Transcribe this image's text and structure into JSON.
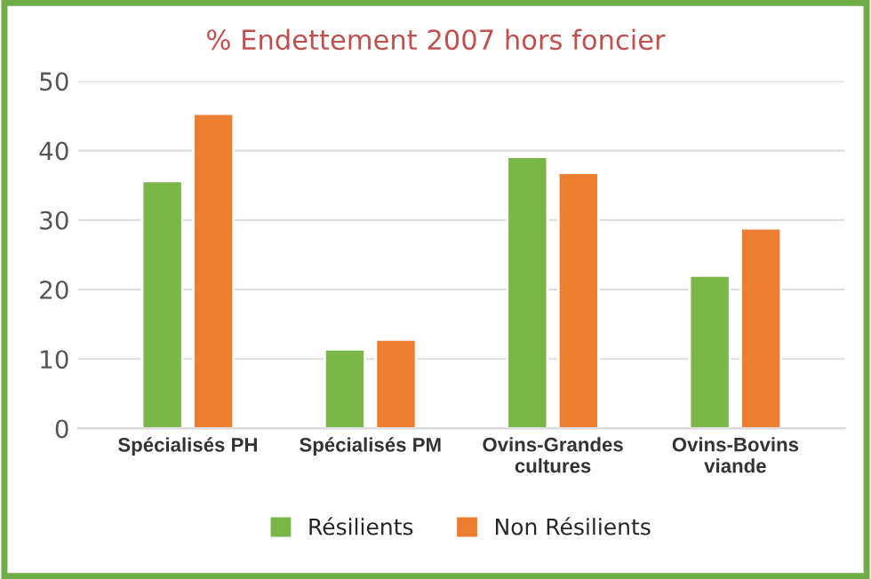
{
  "chart_data": {
    "type": "bar",
    "title": "% Endettement 2007 hors foncier",
    "categories": [
      "Spécialisés PH",
      "Spécialisés PM",
      "Ovins-Grandes\ncultures",
      "Ovins-Bovins\nviande"
    ],
    "series": [
      {
        "name": "Résilients",
        "color": "#7ab648",
        "values": [
          35.6,
          11.4,
          39.1,
          22.0
        ]
      },
      {
        "name": "Non Résilients",
        "color": "#ed7d31",
        "values": [
          45.3,
          12.8,
          36.8,
          28.8
        ]
      }
    ],
    "ylim": [
      0,
      50
    ],
    "yticks": [
      0,
      10,
      20,
      30,
      40,
      50
    ],
    "grid": "y",
    "legend": "bottom"
  }
}
